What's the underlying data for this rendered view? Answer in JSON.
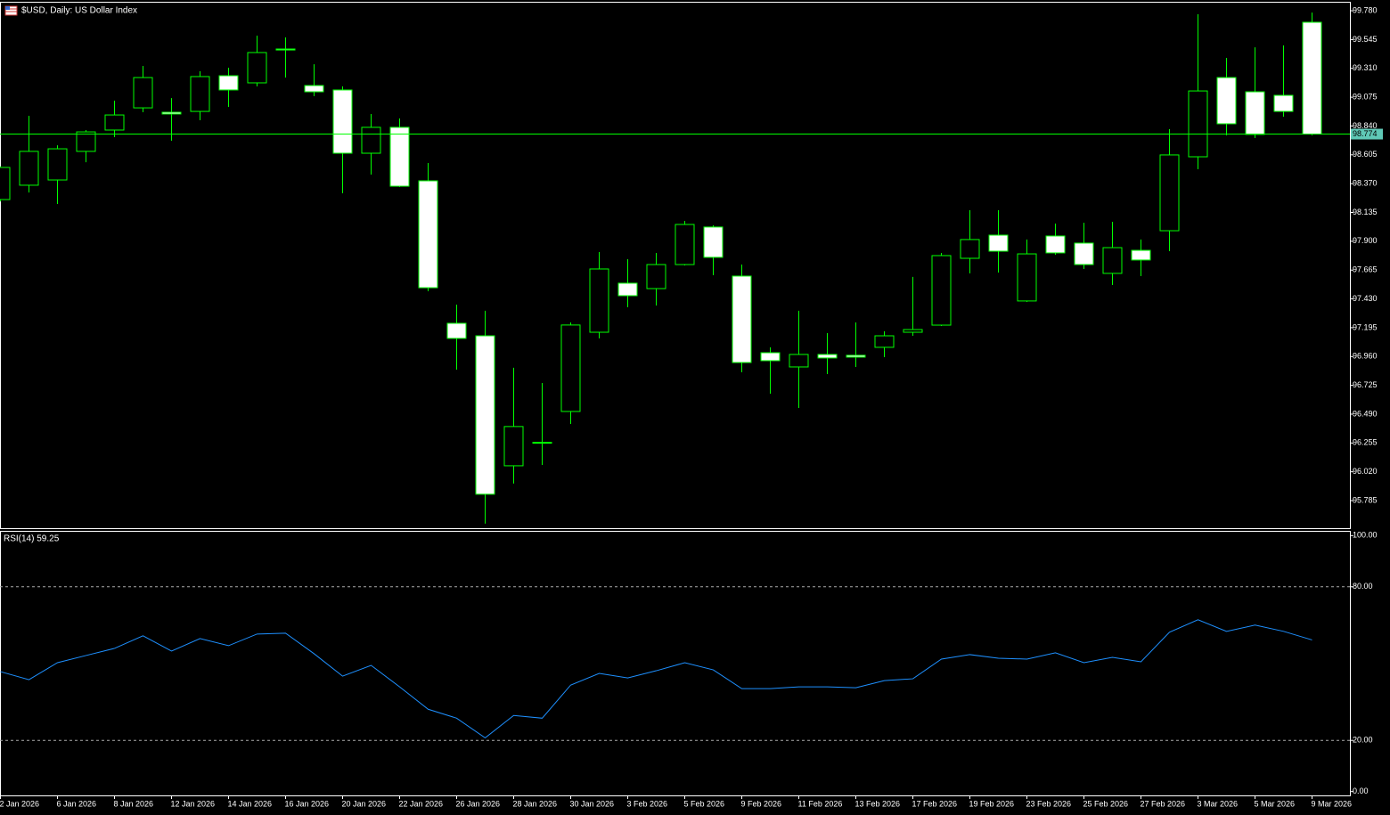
{
  "chart_data": [
    {
      "type": "candlestick",
      "title": "$USD, Daily:  US Dollar Index",
      "categories": [
        "2 Jan 2026",
        null,
        "6 Jan 2026",
        null,
        "8 Jan 2026",
        null,
        "12 Jan 2026",
        null,
        "14 Jan 2026",
        null,
        "16 Jan 2026",
        null,
        "20 Jan 2026",
        null,
        "22 Jan 2026",
        null,
        "26 Jan 2026",
        null,
        "28 Jan 2026",
        null,
        "30 Jan 2026",
        null,
        "3 Feb 2026",
        null,
        "5 Feb 2026",
        null,
        "9 Feb 2026",
        null,
        "11 Feb 2026",
        null,
        "13 Feb 2026",
        null,
        "17 Feb 2026",
        null,
        "19 Feb 2026",
        null,
        "23 Feb 2026",
        null,
        "25 Feb 2026",
        null,
        "27 Feb 2026",
        null,
        "3 Mar 2026",
        null,
        "5 Mar 2026",
        null,
        "9 Mar 2026"
      ],
      "open": [
        98.24,
        98.357,
        98.4,
        98.633,
        98.807,
        98.988,
        98.952,
        98.959,
        99.25,
        99.192,
        99.468,
        99.17,
        99.134,
        98.618,
        98.829,
        98.393,
        97.231,
        97.129,
        96.069,
        96.258,
        96.512,
        97.158,
        97.558,
        97.514,
        97.71,
        98.016,
        97.616,
        96.991,
        96.875,
        96.977,
        96.97,
        97.035,
        97.158,
        97.216,
        97.761,
        97.95,
        97.413,
        97.943,
        97.885,
        97.638,
        97.826,
        97.986,
        98.589,
        99.235,
        99.119,
        99.09,
        99.686
      ],
      "high": [
        98.51,
        98.923,
        98.683,
        98.807,
        99.047,
        99.33,
        99.068,
        99.286,
        99.315,
        99.577,
        99.562,
        99.344,
        99.163,
        98.938,
        98.901,
        98.538,
        97.383,
        97.333,
        96.868,
        96.744,
        97.238,
        97.812,
        97.754,
        97.805,
        98.066,
        98.03,
        97.71,
        97.035,
        97.333,
        97.151,
        97.238,
        97.166,
        97.609,
        97.805,
        98.153,
        98.153,
        97.914,
        98.044,
        98.051,
        98.059,
        97.914,
        98.814,
        99.751,
        99.395,
        99.482,
        99.497,
        99.765
      ],
      "low": [
        98.225,
        98.298,
        98.204,
        98.545,
        98.749,
        98.952,
        98.72,
        98.887,
        98.996,
        99.163,
        99.235,
        99.083,
        98.291,
        98.444,
        98.342,
        97.492,
        96.853,
        95.597,
        95.924,
        96.076,
        96.41,
        97.108,
        97.362,
        97.376,
        97.703,
        97.623,
        96.832,
        96.657,
        96.541,
        96.817,
        96.875,
        96.955,
        97.129,
        97.209,
        97.638,
        97.645,
        97.405,
        97.79,
        97.674,
        97.543,
        97.616,
        97.819,
        98.487,
        98.763,
        98.742,
        98.916,
        98.763
      ],
      "close": [
        98.502,
        98.633,
        98.654,
        98.792,
        98.93,
        99.235,
        98.938,
        99.243,
        99.134,
        99.439,
        99.46,
        99.119,
        98.618,
        98.829,
        98.349,
        97.521,
        97.108,
        95.837,
        96.389,
        96.26,
        97.217,
        97.674,
        97.456,
        97.71,
        98.037,
        97.769,
        96.911,
        96.926,
        96.977,
        96.948,
        96.955,
        97.129,
        97.18,
        97.783,
        97.914,
        97.819,
        97.797,
        97.805,
        97.71,
        97.848,
        97.747,
        98.604,
        99.126,
        98.858,
        98.771,
        98.959,
        98.774
      ],
      "up_color": "#000000",
      "down_color": "#ffffff",
      "wick_color": "#00ff00",
      "price_line": 98.774,
      "price_line_color": "#00ff00",
      "ylim": [
        95.56,
        99.853
      ],
      "yticks": [
        {
          "value": 99.78,
          "label": "99.780"
        },
        99.545,
        {
          "value": 99.31,
          "label": "99.310"
        },
        99.075,
        {
          "value": 98.84,
          "label": "98.840"
        },
        98.605,
        {
          "value": 98.37,
          "label": "98.370"
        },
        98.135,
        {
          "value": 97.9,
          "label": "97.900"
        },
        97.665,
        {
          "value": 97.43,
          "label": "97.430"
        },
        97.195,
        {
          "value": 96.96,
          "label": "96.960"
        },
        96.725,
        {
          "value": 96.49,
          "label": "96.490"
        },
        96.255,
        {
          "value": 96.02,
          "label": "96.020"
        },
        95.785
      ]
    },
    {
      "type": "line",
      "title": "RSI(14) 59.25",
      "values": [
        46.85,
        43.71,
        50.35,
        53.15,
        55.94,
        60.84,
        54.9,
        59.79,
        56.99,
        61.54,
        61.89,
        53.85,
        45.1,
        49.3,
        40.91,
        32.17,
        28.67,
        20.98,
        29.72,
        28.67,
        41.61,
        46.15,
        44.41,
        47.2,
        50.35,
        47.55,
        40.21,
        40.21,
        40.91,
        40.91,
        40.56,
        43.36,
        44.06,
        51.75,
        53.5,
        52.1,
        51.75,
        54.2,
        50.35,
        52.45,
        50.7,
        62.24,
        67.13,
        62.59,
        65.03,
        62.59,
        59.25
      ],
      "color": "#1e90ff",
      "levels": [
        80,
        20
      ],
      "ylim": [
        -1.5,
        101.5
      ],
      "yticks": [
        {
          "value": 100,
          "label": "100.00"
        },
        {
          "value": 80,
          "label": "80.00"
        },
        {
          "value": 20,
          "label": "20.00"
        },
        {
          "value": 0,
          "label": "0.00"
        }
      ]
    }
  ]
}
